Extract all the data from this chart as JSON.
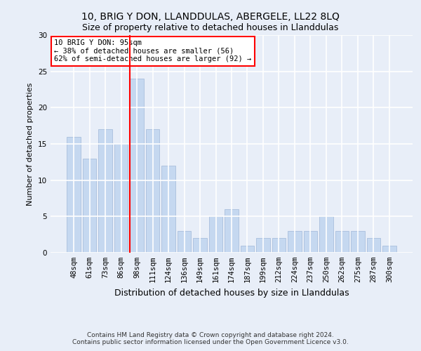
{
  "title": "10, BRIG Y DON, LLANDDULAS, ABERGELE, LL22 8LQ",
  "subtitle": "Size of property relative to detached houses in Llanddulas",
  "xlabel": "Distribution of detached houses by size in Llanddulas",
  "ylabel": "Number of detached properties",
  "categories": [
    "48sqm",
    "61sqm",
    "73sqm",
    "86sqm",
    "98sqm",
    "111sqm",
    "124sqm",
    "136sqm",
    "149sqm",
    "161sqm",
    "174sqm",
    "187sqm",
    "199sqm",
    "212sqm",
    "224sqm",
    "237sqm",
    "250sqm",
    "262sqm",
    "275sqm",
    "287sqm",
    "300sqm"
  ],
  "values": [
    16,
    13,
    17,
    15,
    24,
    17,
    12,
    3,
    2,
    5,
    6,
    1,
    2,
    2,
    3,
    3,
    5,
    3,
    3,
    2,
    1
  ],
  "bar_color": "#c5d8f0",
  "bar_edge_color": "#a0b8d8",
  "vline_x_index": 3.575,
  "vline_color": "red",
  "annotation_text": "10 BRIG Y DON: 95sqm\n← 38% of detached houses are smaller (56)\n62% of semi-detached houses are larger (92) →",
  "annotation_box_color": "white",
  "annotation_box_edge": "red",
  "ylim": [
    0,
    30
  ],
  "yticks": [
    0,
    5,
    10,
    15,
    20,
    25,
    30
  ],
  "footer": "Contains HM Land Registry data © Crown copyright and database right 2024.\nContains public sector information licensed under the Open Government Licence v3.0.",
  "bg_color": "#e8eef8",
  "grid_color": "white",
  "title_fontsize": 10,
  "subtitle_fontsize": 9,
  "xlabel_fontsize": 9,
  "ylabel_fontsize": 8,
  "tick_fontsize": 7.5,
  "annotation_fontsize": 7.5,
  "footer_fontsize": 6.5
}
